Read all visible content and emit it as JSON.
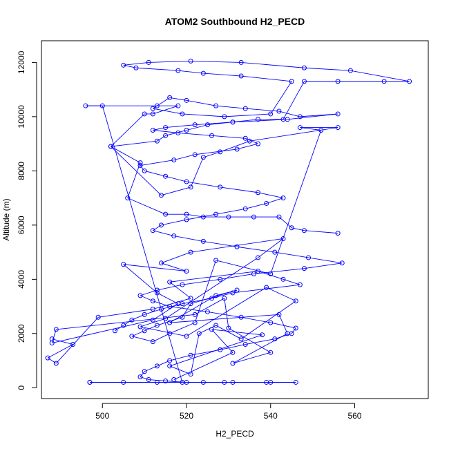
{
  "chart_data": {
    "type": "scatter",
    "title": "ATOM2 Southbound H2_PECD",
    "xlabel": "H2_PECD",
    "ylabel": "Altitude (m)",
    "xlim": [
      485.5,
      577.5
    ],
    "ylim": [
      -400,
      12800
    ],
    "xticks": [
      500,
      520,
      540,
      560
    ],
    "yticks": [
      0,
      2000,
      4000,
      6000,
      8000,
      10000,
      12000
    ],
    "grid": false,
    "legend": "none",
    "style": "points connected by lines (type='b')",
    "colors": {
      "series": "#0000ff"
    },
    "series": [
      {
        "x": [
          517,
          531,
          526,
          538,
          516,
          521,
          523,
          527,
          533,
          546,
          539,
          520,
          509,
          515,
          537,
          543,
          521,
          514,
          520,
          505,
          513,
          518,
          512,
          488,
          489,
          522,
          529,
          530,
          540,
          531,
          544,
          542,
          516,
          527,
          532,
          521,
          519,
          513,
          510,
          507,
          512,
          516,
          522,
          527,
          540,
          552,
          547,
          556,
          535,
          528,
          524,
          521,
          514,
          502,
          513,
          515,
          520,
          525,
          531,
          537,
          543,
          548,
          556,
          567,
          573,
          559,
          548,
          533,
          521,
          511,
          505,
          508,
          518,
          524,
          533,
          545,
          540,
          529,
          519,
          512,
          516,
          520,
          527,
          534,
          542,
          547,
          556,
          544,
          531,
          522,
          515,
          512,
          518,
          526,
          534,
          537,
          532,
          522,
          517,
          509,
          510,
          515,
          520,
          528,
          537,
          543,
          539,
          534,
          527,
          520,
          514,
          512,
          517,
          524,
          532,
          541,
          549,
          557,
          548,
          536,
          528,
          519,
          513,
          509,
          512,
          516,
          525,
          533,
          540,
          546,
          545,
          541,
          534,
          528,
          521,
          516,
          513,
          510,
          509,
          511,
          515,
          520,
          529,
          539,
          546,
          540,
          531,
          524,
          513,
          505,
          497
        ],
        "y": [
          300,
          1300,
          2150,
          1950,
          800,
          500,
          2000,
          2300,
          1800,
          3200,
          3700,
          1900,
          2250,
          2550,
          4800,
          5500,
          5000,
          4600,
          4300,
          4550,
          3500,
          3100,
          2500,
          1650,
          2150,
          2700,
          3300,
          2200,
          1300,
          900,
          2000,
          2700,
          2400,
          3400,
          3600,
          3100,
          2600,
          2300,
          2100,
          1900,
          1700,
          2000,
          2400,
          4700,
          4200,
          9500,
          9600,
          9600,
          9100,
          8700,
          8500,
          7400,
          7100,
          8900,
          9100,
          9300,
          9500,
          9700,
          9800,
          9900,
          9900,
          11300,
          11300,
          11300,
          11300,
          11700,
          11800,
          12000,
          12050,
          12000,
          11900,
          11800,
          11700,
          11600,
          11500,
          11300,
          10100,
          10000,
          10100,
          10300,
          10700,
          10600,
          10400,
          10300,
          10200,
          10000,
          10100,
          9900,
          9800,
          9700,
          9600,
          9500,
          9400,
          9300,
          9200,
          9000,
          8800,
          8600,
          8400,
          8200,
          8000,
          7800,
          7600,
          7400,
          7200,
          7000,
          6800,
          6600,
          6400,
          6200,
          6000,
          5800,
          5600,
          5400,
          5200,
          5000,
          4800,
          4600,
          4400,
          4200,
          4000,
          3800,
          3600,
          3400,
          3200,
          3000,
          2800,
          2600,
          2400,
          2200,
          2000,
          1800,
          1600,
          1400,
          1200,
          1000,
          800,
          600,
          400,
          300,
          250,
          200,
          200,
          200,
          200,
          200,
          200,
          200,
          200,
          200,
          200
        ]
      },
      {
        "x": [
          497,
          519,
          500,
          496,
          513,
          518,
          512,
          510,
          502,
          509,
          506,
          515,
          520,
          524,
          530,
          536,
          542,
          545,
          548,
          556
        ],
        "y": [
          200,
          200,
          10400,
          10400,
          10400,
          10400,
          10100,
          10100,
          8900,
          8300,
          7000,
          6400,
          6400,
          6300,
          6300,
          6300,
          6300,
          5900,
          5800,
          5700
        ]
      },
      {
        "x": [
          488,
          493,
          487,
          489,
          499,
          512,
          521,
          516,
          537,
          543,
          547,
          531,
          526,
          519,
          514,
          510,
          507,
          505,
          503
        ],
        "y": [
          1800,
          1600,
          1100,
          900,
          2600,
          2900,
          3300,
          3900,
          4300,
          4000,
          3800,
          3500,
          3300,
          3100,
          2900,
          2700,
          2500,
          2300,
          2100
        ]
      }
    ]
  }
}
